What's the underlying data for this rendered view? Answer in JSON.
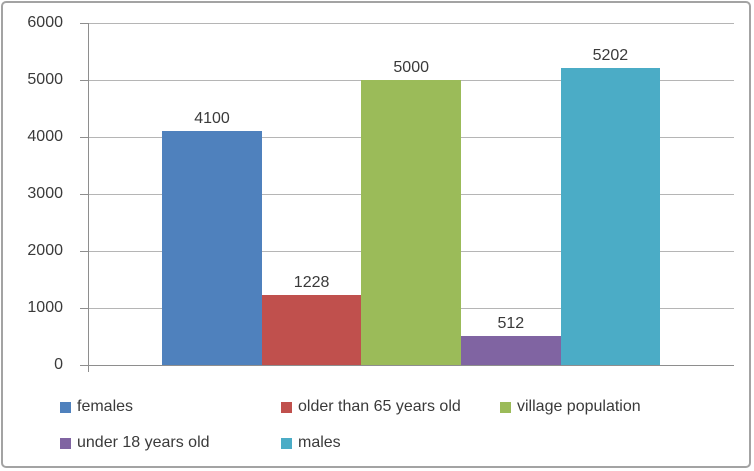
{
  "chart_data": {
    "type": "bar",
    "title": "",
    "categories": [
      ""
    ],
    "series": [
      {
        "name": "females",
        "value": 4100,
        "data_label": "4100",
        "color": "#4F81BD"
      },
      {
        "name": "older than 65 years old",
        "value": 1228,
        "data_label": "1228",
        "color": "#C0504D"
      },
      {
        "name": "village population",
        "value": 5000,
        "data_label": "5000",
        "color": "#9BBB59"
      },
      {
        "name": "under 18 years old",
        "value": 512,
        "data_label": "512",
        "color": "#8064A2"
      },
      {
        "name": "males",
        "value": 5202,
        "data_label": "5202",
        "color": "#4BACC6"
      }
    ],
    "y_axis": {
      "min": 0,
      "max": 6000,
      "step": 1000,
      "tick_labels": [
        "0",
        "1000",
        "2000",
        "3000",
        "4000",
        "5000",
        "6000"
      ]
    },
    "grid": "horizontal",
    "legend": {
      "position": "bottom",
      "rows": [
        [
          "females",
          "older than 65 years old",
          "village population"
        ],
        [
          "under 18 years old",
          "males"
        ]
      ]
    },
    "colors": {
      "gridline": "#B5B5B5",
      "axis": "#8E8E8E",
      "text": "#3A3A3A",
      "frame_border": "#A3A3A3",
      "background": "#FFFFFF"
    }
  }
}
